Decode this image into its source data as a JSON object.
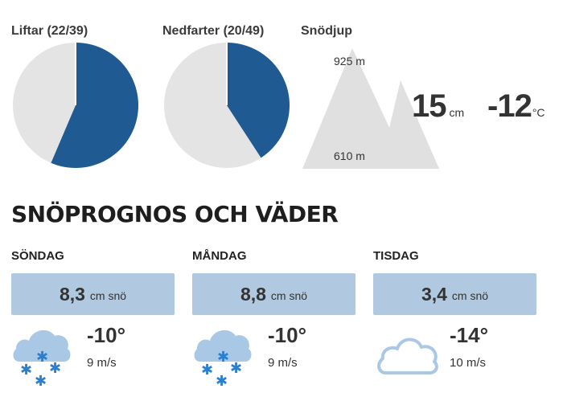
{
  "stats": {
    "lifts": {
      "title": "Liftar (22/39)",
      "open": 22,
      "total": 39
    },
    "runs": {
      "title": "Nedfarter (20/49)",
      "open": 20,
      "total": 49
    },
    "snow_depth": {
      "title": "Snödjup",
      "top_elevation": "925 m",
      "base_elevation": "610 m",
      "depth_value": "15",
      "depth_unit": "cm",
      "temp_value": "-12",
      "temp_unit": "°C"
    }
  },
  "colors": {
    "pie_filled": "#1f5a93",
    "pie_empty": "#e4e4e4",
    "snow_box": "#b0c8e0",
    "icon_blue": "#2a7fd0",
    "cloud": "#a9c8e6",
    "mountain": "#e0e0e0"
  },
  "forecast": {
    "title": "SNÖPROGNOS OCH VÄDER",
    "days": [
      {
        "name": "SÖNDAG",
        "snow_value": "8,3",
        "snow_unit": "cm snö",
        "temp": "-10°",
        "wind": "9 m/s",
        "icon": "snow-cloud-icon"
      },
      {
        "name": "MÅNDAG",
        "snow_value": "8,8",
        "snow_unit": "cm snö",
        "temp": "-10°",
        "wind": "9 m/s",
        "icon": "snow-cloud-icon"
      },
      {
        "name": "TISDAG",
        "snow_value": "3,4",
        "snow_unit": "cm snö",
        "temp": "-14°",
        "wind": "10 m/s",
        "icon": "cloud-icon"
      }
    ]
  }
}
